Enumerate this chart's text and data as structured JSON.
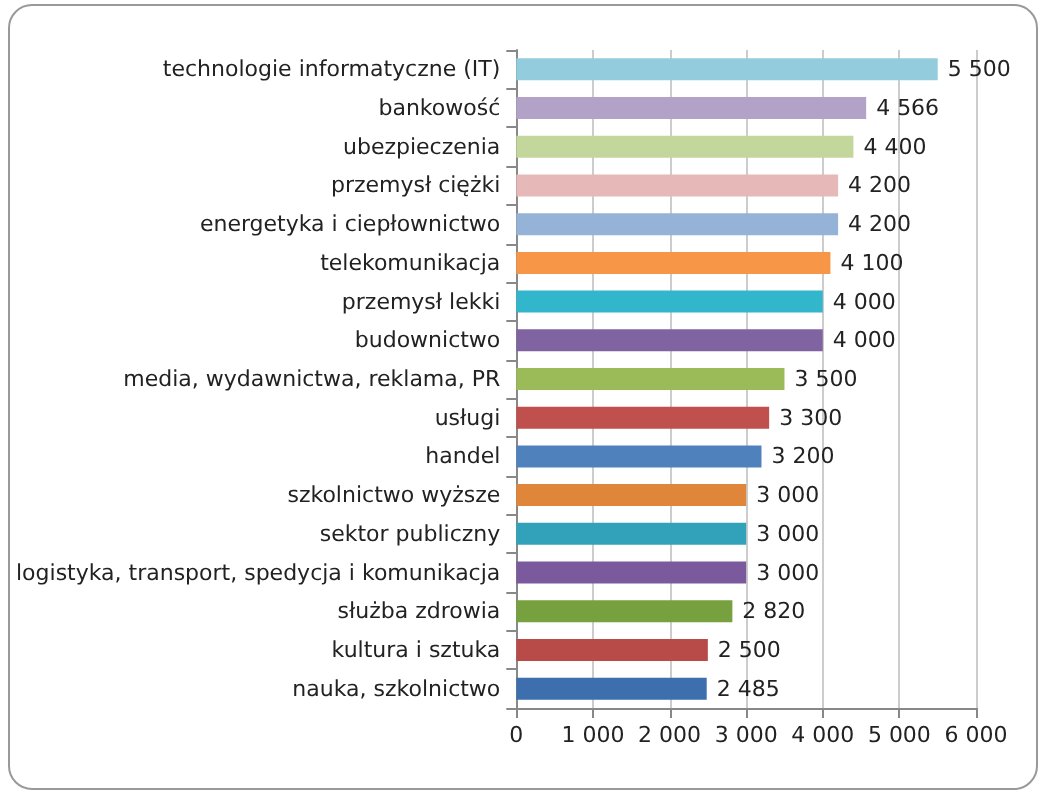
{
  "chart_data": {
    "type": "bar",
    "orientation": "horizontal",
    "categories": [
      "technologie informatyczne (IT)",
      "bankowość",
      "ubezpieczenia",
      "przemysł ciężki",
      "energetyka i ciepłownictwo",
      "telekomunikacja",
      "przemysł lekki",
      "budownictwo",
      "media, wydawnictwa, reklama, PR",
      "usługi",
      "handel",
      "szkolnictwo wyższe",
      "sektor publiczny",
      "logistyka, transport, spedycja i komunikacja",
      "służba zdrowia",
      "kultura i sztuka",
      "nauka, szkolnictwo"
    ],
    "values": [
      5500,
      4566,
      4400,
      4200,
      4200,
      4100,
      4000,
      4000,
      3500,
      3300,
      3200,
      3000,
      3000,
      3000,
      2820,
      2500,
      2485
    ],
    "colors": [
      "#93cddd",
      "#b3a2c7",
      "#c3d69b",
      "#e6b9b8",
      "#95b3d7",
      "#f79646",
      "#31b6cc",
      "#8064a2",
      "#9bbb59",
      "#c0504d",
      "#4f81bd",
      "#e0863a",
      "#31a2b9",
      "#7a5a9c",
      "#77a03f",
      "#b84a48",
      "#3d6fae"
    ],
    "value_labels": [
      "5 500",
      "4 566",
      "4 400",
      "4 200",
      "4 200",
      "4 100",
      "4 000",
      "4 000",
      "3 500",
      "3 300",
      "3 200",
      "3 000",
      "3 000",
      "3 000",
      "2 820",
      "2 500",
      "2 485"
    ],
    "xlim": [
      0,
      6000
    ],
    "xticks": [
      0,
      {
        "value": 1000,
        "label": "1 000"
      },
      {
        "value": 2000,
        "label": "2 000"
      },
      {
        "value": 3000,
        "label": "3 000"
      },
      {
        "value": 4000,
        "label": "4 000"
      },
      {
        "value": 5000,
        "label": "5 000"
      },
      {
        "value": 6000,
        "label": "6 000"
      }
    ],
    "grid": "x"
  }
}
